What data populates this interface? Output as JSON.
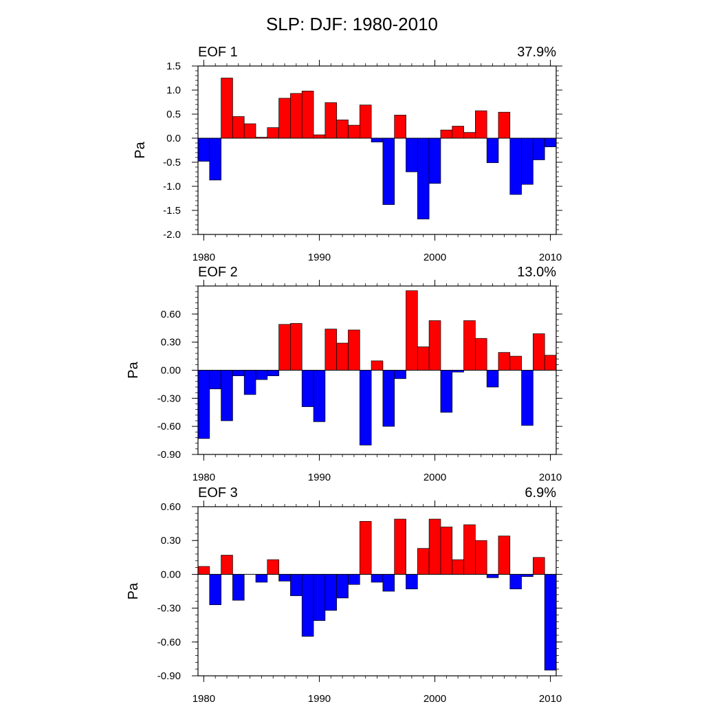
{
  "figure": {
    "title": "SLP: DJF: 1980-2010"
  },
  "colors": {
    "positive": "#ff0000",
    "negative": "#0000ff",
    "axis": "#000000"
  },
  "chart_data": [
    {
      "type": "bar",
      "panel_label": "EOF 1",
      "variance_label": "37.9%",
      "ylabel": "Pa",
      "x": [
        1980,
        1981,
        1982,
        1983,
        1984,
        1985,
        1986,
        1987,
        1988,
        1989,
        1990,
        1991,
        1992,
        1993,
        1994,
        1995,
        1996,
        1997,
        1998,
        1999,
        2000,
        2001,
        2002,
        2003,
        2004,
        2005,
        2006,
        2007,
        2008,
        2009,
        2010
      ],
      "values": [
        -0.48,
        -0.87,
        1.25,
        0.45,
        0.3,
        0.02,
        0.22,
        0.83,
        0.93,
        0.98,
        0.07,
        0.74,
        0.38,
        0.27,
        0.69,
        -0.08,
        -1.38,
        0.48,
        -0.7,
        -1.68,
        -0.94,
        0.17,
        0.25,
        0.12,
        0.57,
        -0.51,
        0.54,
        -1.17,
        -0.96,
        -0.45,
        -0.18
      ],
      "ylim": [
        -2.0,
        1.5
      ],
      "yticks": [
        -2.0,
        -1.5,
        -1.0,
        -0.5,
        0.0,
        0.5,
        1.0,
        1.5
      ],
      "ytick_labels": [
        "-2.0",
        "-1.5",
        "-1.0",
        "-0.5",
        "0.0",
        "0.5",
        "1.0",
        "1.5"
      ],
      "xlim": [
        1979.5,
        2010.5
      ],
      "xticks": [
        1980,
        1990,
        2000,
        2010
      ],
      "xtick_labels": [
        "1980",
        "1990",
        "2000",
        "2010"
      ]
    },
    {
      "type": "bar",
      "panel_label": "EOF 2",
      "variance_label": "13.0%",
      "ylabel": "Pa",
      "x": [
        1980,
        1981,
        1982,
        1983,
        1984,
        1985,
        1986,
        1987,
        1988,
        1989,
        1990,
        1991,
        1992,
        1993,
        1994,
        1995,
        1996,
        1997,
        1998,
        1999,
        2000,
        2001,
        2002,
        2003,
        2004,
        2005,
        2006,
        2007,
        2008,
        2009,
        2010
      ],
      "values": [
        -0.73,
        -0.2,
        -0.54,
        -0.06,
        -0.26,
        -0.1,
        -0.06,
        0.49,
        0.5,
        -0.39,
        -0.55,
        0.44,
        0.29,
        0.43,
        -0.8,
        0.1,
        -0.6,
        -0.09,
        0.85,
        0.25,
        0.53,
        -0.45,
        -0.02,
        0.53,
        0.34,
        -0.18,
        0.19,
        0.15,
        -0.59,
        0.39,
        0.16
      ],
      "ylim": [
        -0.9,
        0.9
      ],
      "yticks": [
        -0.9,
        -0.6,
        -0.3,
        0.0,
        0.3,
        0.6
      ],
      "ytick_labels": [
        "-0.90",
        "-0.60",
        "-0.30",
        "0.00",
        "0.30",
        "0.60"
      ],
      "xlim": [
        1979.5,
        2010.5
      ],
      "xticks": [
        1980,
        1990,
        2000,
        2010
      ],
      "xtick_labels": [
        "1980",
        "1990",
        "2000",
        "2010"
      ]
    },
    {
      "type": "bar",
      "panel_label": "EOF 3",
      "variance_label": "6.9%",
      "ylabel": "Pa",
      "x": [
        1980,
        1981,
        1982,
        1983,
        1984,
        1985,
        1986,
        1987,
        1988,
        1989,
        1990,
        1991,
        1992,
        1993,
        1994,
        1995,
        1996,
        1997,
        1998,
        1999,
        2000,
        2001,
        2002,
        2003,
        2004,
        2005,
        2006,
        2007,
        2008,
        2009,
        2010
      ],
      "values": [
        0.07,
        -0.27,
        0.17,
        -0.23,
        0.0,
        -0.07,
        0.13,
        -0.06,
        -0.19,
        -0.55,
        -0.41,
        -0.32,
        -0.21,
        -0.09,
        0.47,
        -0.07,
        -0.15,
        0.49,
        -0.13,
        0.23,
        0.49,
        0.42,
        0.13,
        0.44,
        0.3,
        -0.03,
        0.34,
        -0.13,
        -0.02,
        0.15,
        -0.85
      ],
      "ylim": [
        -0.9,
        0.6
      ],
      "yticks": [
        -0.9,
        -0.6,
        -0.3,
        0.0,
        0.3,
        0.6
      ],
      "ytick_labels": [
        "-0.90",
        "-0.60",
        "-0.30",
        "0.00",
        "0.30",
        "0.60"
      ],
      "xlim": [
        1979.5,
        2010.5
      ],
      "xticks": [
        1980,
        1990,
        2000,
        2010
      ],
      "xtick_labels": [
        "1980",
        "1990",
        "2000",
        "2010"
      ]
    }
  ]
}
